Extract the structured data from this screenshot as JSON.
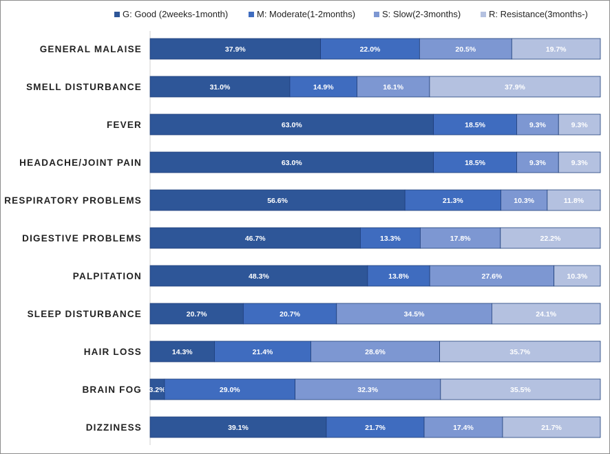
{
  "chart_data": {
    "type": "bar",
    "orientation": "horizontal",
    "stacked": "100%",
    "title": "",
    "xlabel": "",
    "ylabel": "",
    "xlim": [
      0,
      100
    ],
    "grid": false,
    "legend_position": "top",
    "categories": [
      "GENERAL MALAISE",
      "SMELL DISTURBANCE",
      "FEVER",
      "HEADACHE/JOINT PAIN",
      "RESPIRATORY PROBLEMS",
      "DIGESTIVE PROBLEMS",
      "PALPITATION",
      "SLEEP DISTURBANCE",
      "HAIR LOSS",
      "BRAIN FOG",
      "DIZZINESS"
    ],
    "series": [
      {
        "name": "G: Good (2weeks-1month)",
        "color": "#2e5698",
        "values": [
          37.9,
          31.0,
          63.0,
          63.0,
          56.6,
          46.7,
          48.3,
          20.7,
          14.3,
          3.2,
          39.1
        ]
      },
      {
        "name": "M: Moderate(1-2months)",
        "color": "#3f6cbf",
        "values": [
          22.0,
          14.9,
          18.5,
          18.5,
          21.3,
          13.3,
          13.8,
          20.7,
          21.4,
          29.0,
          21.7
        ]
      },
      {
        "name": "S: Slow(2-3months)",
        "color": "#7d97d2",
        "values": [
          20.5,
          16.1,
          9.3,
          9.3,
          10.3,
          17.8,
          27.6,
          34.5,
          28.6,
          32.3,
          17.4
        ]
      },
      {
        "name": "R: Resistance(3months-)",
        "color": "#b4c1e0",
        "values": [
          19.7,
          37.9,
          9.3,
          9.3,
          11.8,
          22.2,
          10.3,
          24.1,
          35.7,
          35.5,
          21.7
        ]
      }
    ],
    "value_label_format": "{v}%"
  }
}
